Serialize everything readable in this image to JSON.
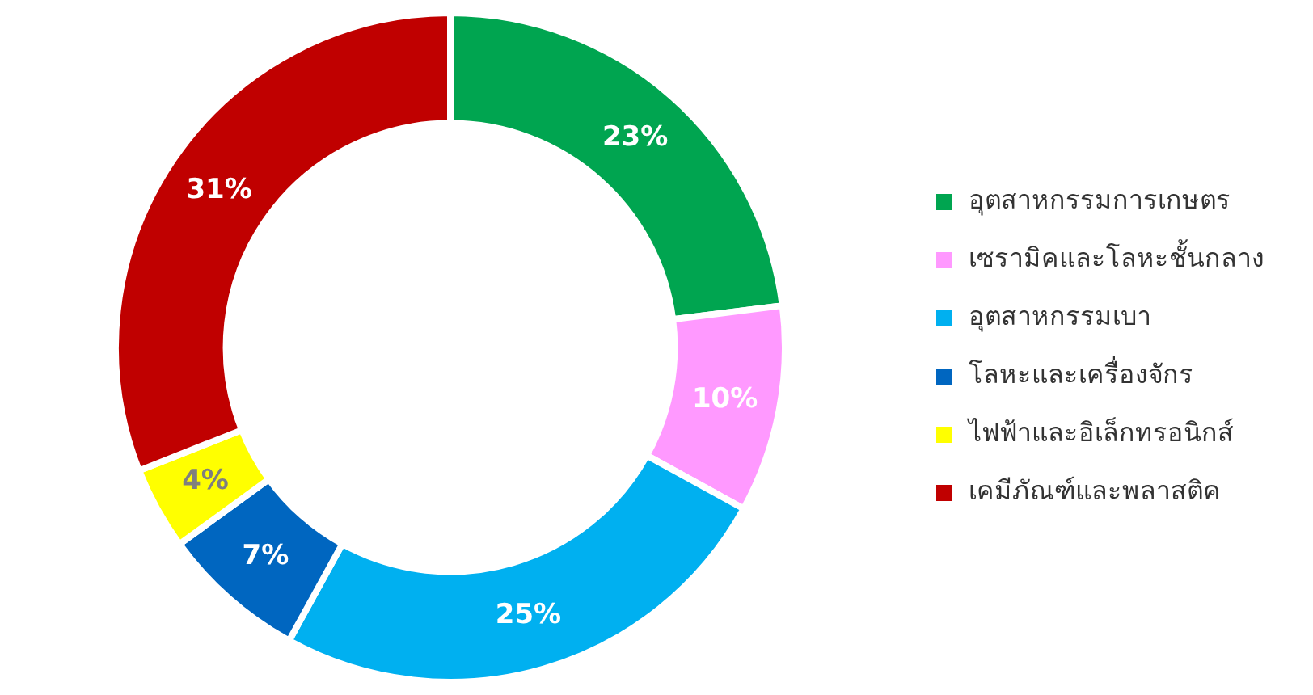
{
  "chart_data": {
    "type": "donut",
    "categories": [
      "อุตสาหกรรมการเกษตร",
      "เซรามิคและโลหะชั้นกลาง",
      "อุตสาหกรรมเบา",
      "โลหะและเครื่องจักร",
      "ไฟฟ้าและอิเล็กทรอนิกส์",
      "เคมีภัณฑ์และพลาสติค"
    ],
    "values": [
      23,
      10,
      25,
      7,
      4,
      31
    ],
    "colors": [
      "#00a550",
      "#ff99ff",
      "#00b0f0",
      "#0066c0",
      "#ffff00",
      "#c00000"
    ],
    "value_labels": [
      "23%",
      "10%",
      "25%",
      "7%",
      "4%",
      "31%"
    ],
    "legend": "right"
  }
}
